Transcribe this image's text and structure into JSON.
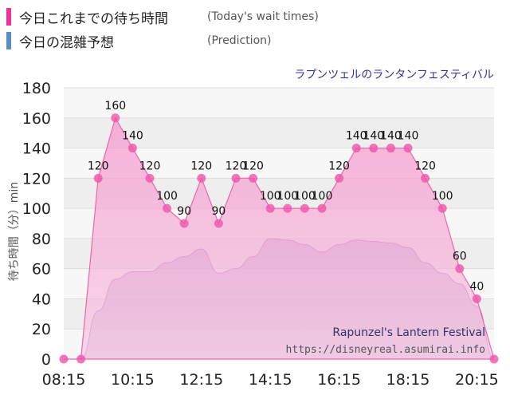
{
  "legend": {
    "actual": {
      "label": "今日これまでの待ち時間",
      "sub": "(Today's wait times)",
      "color": "#ee3399"
    },
    "predict": {
      "label": "今日の混雑予想",
      "sub": "(Prediction)",
      "color": "#5b8fbf"
    }
  },
  "chart_data": {
    "type": "area",
    "title": "ラプンツェルのランタンフェスティバル",
    "ylabel": "待ち時間（分）min",
    "ylim": [
      0,
      180
    ],
    "yticks": [
      0,
      20,
      40,
      60,
      80,
      100,
      120,
      140,
      160,
      180
    ],
    "xticks": [
      "08:15",
      "10:15",
      "12:15",
      "14:15",
      "16:15",
      "18:15",
      "20:15"
    ],
    "grid": true,
    "watermark": {
      "line1": "Rapunzel's Lantern Festival",
      "line2": "https://disneyreal.asumirai.info"
    },
    "series": [
      {
        "key": "actual",
        "x": [
          "08:15",
          "08:45",
          "09:15",
          "09:45",
          "10:15",
          "10:45",
          "11:15",
          "11:45",
          "12:15",
          "12:45",
          "13:15",
          "13:45",
          "14:15",
          "14:45",
          "15:15",
          "15:45",
          "16:15",
          "16:45",
          "17:15",
          "17:45",
          "18:15",
          "18:45",
          "19:15",
          "19:45",
          "20:15",
          "20:45"
        ],
        "values": [
          0,
          0,
          120,
          160,
          140,
          120,
          100,
          90,
          120,
          90,
          120,
          120,
          100,
          100,
          100,
          100,
          120,
          140,
          140,
          140,
          140,
          120,
          100,
          60,
          40,
          0
        ],
        "labels": [
          null,
          null,
          "120",
          "160",
          "140",
          "120",
          "100",
          "90",
          "120",
          "90",
          "120",
          "120",
          "100",
          "100",
          "100",
          "100",
          "120",
          "140",
          "140",
          "140",
          "140",
          "120",
          "100",
          "60",
          "40",
          null
        ]
      },
      {
        "key": "predict",
        "x": [
          "08:15",
          "08:45",
          "09:15",
          "09:45",
          "10:15",
          "10:45",
          "11:15",
          "11:45",
          "12:15",
          "12:45",
          "13:15",
          "13:45",
          "14:15",
          "14:45",
          "15:15",
          "15:45",
          "16:15",
          "16:45",
          "17:15",
          "17:45",
          "18:15",
          "18:45",
          "19:15",
          "19:45",
          "20:15",
          "20:45"
        ],
        "values": [
          0,
          0,
          32,
          53,
          58,
          58,
          64,
          68,
          73,
          57,
          60,
          68,
          80,
          79,
          76,
          71,
          76,
          79,
          78,
          77,
          74,
          64,
          57,
          50,
          35,
          0
        ]
      }
    ]
  }
}
